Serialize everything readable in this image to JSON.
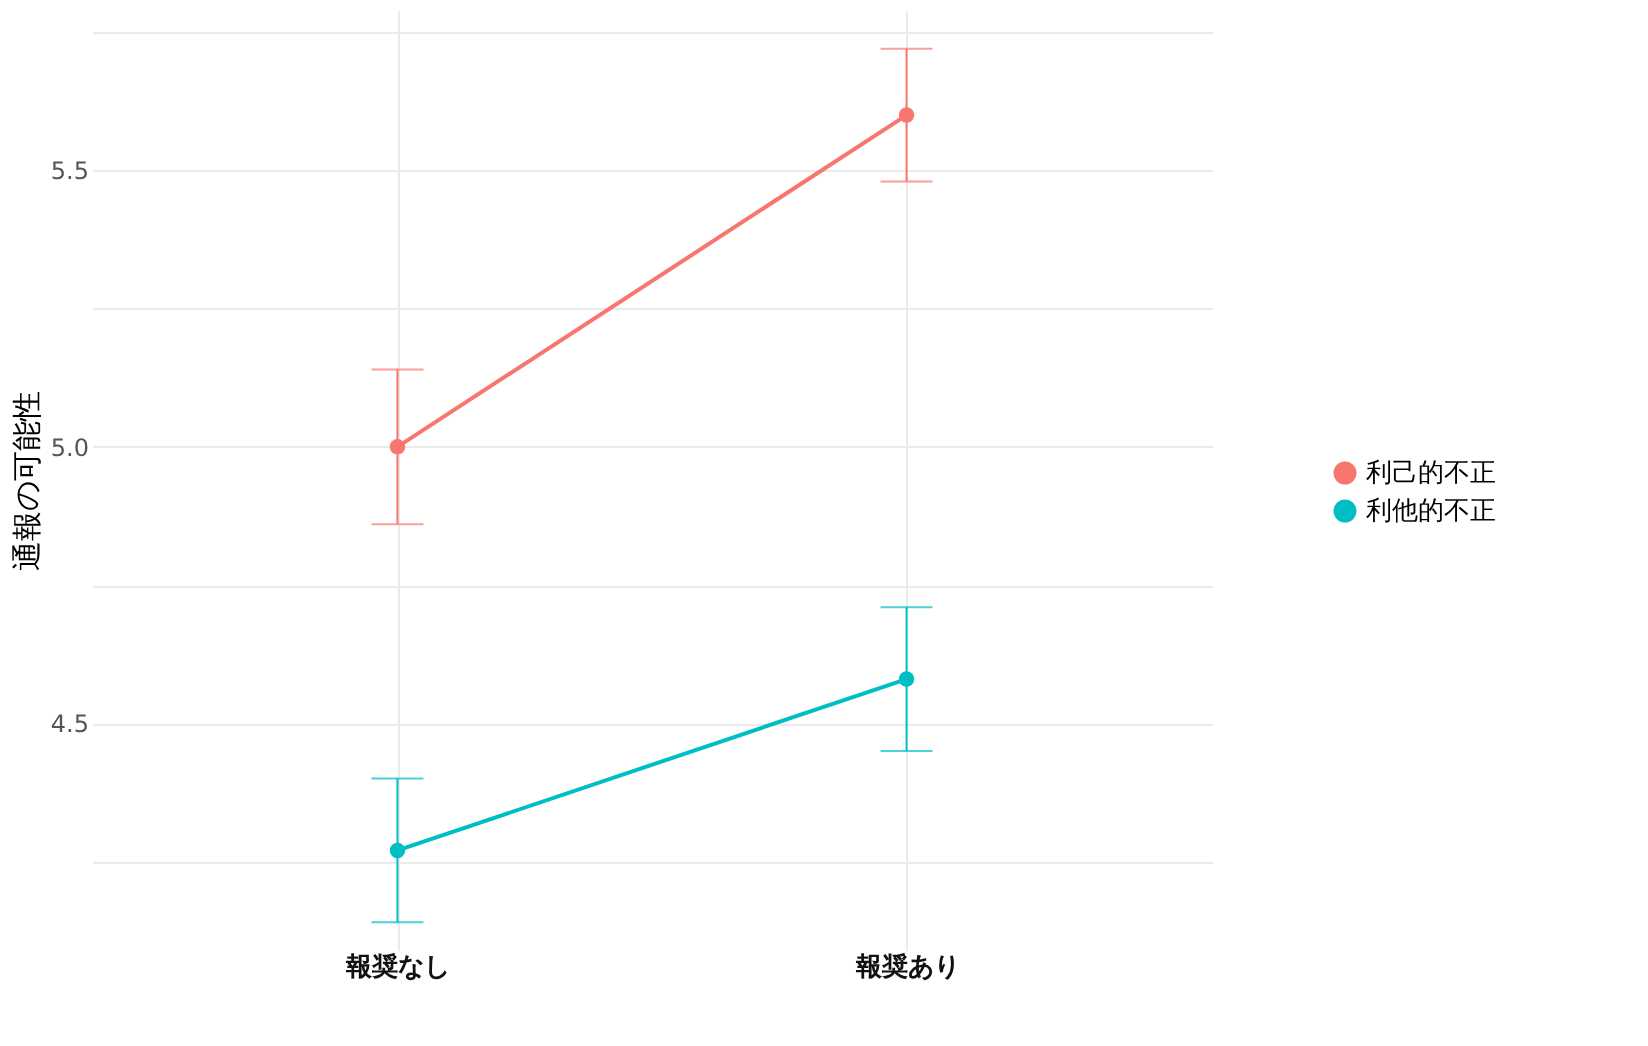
{
  "chart_data": {
    "type": "line",
    "ylabel": "通報の可能性",
    "categories": [
      "報奨なし",
      "報奨あり"
    ],
    "series": [
      {
        "name": "利己的不正",
        "color": "#f8766d",
        "values": [
          5.0,
          5.6
        ],
        "errors": [
          [
            4.86,
            5.14
          ],
          [
            5.48,
            5.72
          ]
        ]
      },
      {
        "name": "利他的不正",
        "color": "#00bfc4",
        "values": [
          4.27,
          4.58
        ],
        "errors": [
          [
            4.14,
            4.4
          ],
          [
            4.45,
            4.71
          ]
        ]
      }
    ],
    "ylim": [
      4.09,
      5.79
    ],
    "yticks": [
      {
        "value": 4.25,
        "label": null
      },
      4.5,
      {
        "value": 4.75,
        "label": null
      },
      {
        "value": 5.0,
        "label": "5.0"
      },
      {
        "value": 5.25,
        "label": null
      },
      5.5,
      {
        "value": 5.75,
        "label": null
      }
    ],
    "grid": true,
    "legend": "right",
    "marker": "circle",
    "line_style": "solid"
  }
}
